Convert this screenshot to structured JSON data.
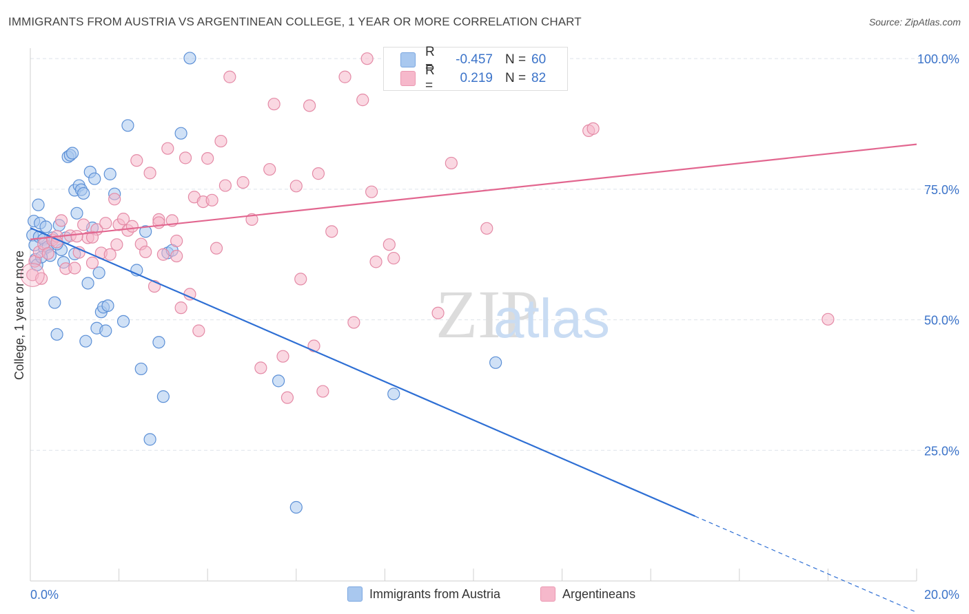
{
  "title": "IMMIGRANTS FROM AUSTRIA VS ARGENTINEAN COLLEGE, 1 YEAR OR MORE CORRELATION CHART",
  "source": "Source: ZipAtlas.com",
  "watermark": {
    "zip": "ZIP",
    "atlas": "atlas"
  },
  "legend": {
    "rows": [
      {
        "r_label": "R =",
        "r_value": "-0.457",
        "n_label": "N =",
        "n_value": "60",
        "color": "#a9c8ef"
      },
      {
        "r_label": "R =",
        "r_value": "0.219",
        "n_label": "N =",
        "n_value": "82",
        "color": "#f6b8cb"
      }
    ]
  },
  "bottom_legend": [
    {
      "label": "Immigrants from Austria",
      "color": "#a9c8ef"
    },
    {
      "label": "Argentineans",
      "color": "#f6b8cb"
    }
  ],
  "chart_data": {
    "type": "scatter",
    "title": "IMMIGRANTS FROM AUSTRIA VS ARGENTINEAN COLLEGE, 1 YEAR OR MORE CORRELATION CHART",
    "xlabel": "",
    "ylabel": "College, 1 year or more",
    "xlim": [
      0,
      20
    ],
    "ylim": [
      0,
      102
    ],
    "x_tick_labels": [
      "0.0%",
      "20.0%"
    ],
    "y_tick_labels": [
      "25.0%",
      "50.0%",
      "75.0%",
      "100.0%"
    ],
    "y_ticks": [
      25,
      50,
      75,
      100
    ],
    "grid": "horizontal dashed",
    "legend_placement": "top-center",
    "colors": {
      "austria_fill": "#a9c8ef",
      "austria_stroke": "#5b8fd6",
      "austria_line": "#2e6fd4",
      "argentina_fill": "#f6b8cb",
      "argentina_stroke": "#e48aa6",
      "argentina_line": "#e2668f",
      "tick_label": "#3b73c9"
    },
    "series": [
      {
        "name": "Immigrants from Austria",
        "points": [
          [
            0.05,
            66.2
          ],
          [
            0.08,
            68.9
          ],
          [
            0.1,
            64.3
          ],
          [
            0.12,
            61.6
          ],
          [
            0.18,
            72.0
          ],
          [
            0.2,
            65.9
          ],
          [
            0.22,
            68.5
          ],
          [
            0.3,
            65.4
          ],
          [
            0.32,
            63.6
          ],
          [
            0.35,
            67.8
          ],
          [
            0.4,
            64.0
          ],
          [
            0.45,
            62.3
          ],
          [
            0.5,
            65.7
          ],
          [
            0.55,
            53.3
          ],
          [
            0.6,
            47.2
          ],
          [
            0.65,
            68.1
          ],
          [
            0.7,
            63.4
          ],
          [
            0.75,
            61.0
          ],
          [
            0.8,
            65.7
          ],
          [
            0.85,
            81.2
          ],
          [
            0.9,
            81.5
          ],
          [
            0.95,
            81.9
          ],
          [
            1.0,
            74.8
          ],
          [
            1.05,
            70.4
          ],
          [
            1.1,
            75.7
          ],
          [
            1.15,
            74.9
          ],
          [
            1.2,
            74.2
          ],
          [
            1.25,
            45.9
          ],
          [
            1.3,
            57.0
          ],
          [
            1.35,
            78.3
          ],
          [
            1.4,
            67.6
          ],
          [
            1.45,
            77.0
          ],
          [
            1.5,
            48.4
          ],
          [
            1.55,
            59.0
          ],
          [
            1.6,
            51.5
          ],
          [
            1.65,
            52.4
          ],
          [
            1.75,
            52.7
          ],
          [
            1.8,
            77.9
          ],
          [
            1.9,
            74.1
          ],
          [
            2.1,
            49.7
          ],
          [
            2.2,
            87.2
          ],
          [
            2.4,
            59.5
          ],
          [
            2.5,
            40.6
          ],
          [
            2.6,
            66.9
          ],
          [
            2.7,
            27.1
          ],
          [
            2.9,
            45.7
          ],
          [
            3.0,
            35.3
          ],
          [
            3.1,
            62.8
          ],
          [
            3.2,
            63.3
          ],
          [
            3.4,
            85.7
          ],
          [
            3.6,
            100.1
          ],
          [
            1.7,
            47.9
          ],
          [
            0.15,
            60.5
          ],
          [
            0.25,
            62.0
          ],
          [
            0.6,
            64.5
          ],
          [
            1.0,
            62.6
          ],
          [
            5.6,
            38.3
          ],
          [
            6.0,
            14.1
          ],
          [
            8.2,
            35.8
          ],
          [
            10.5,
            41.8
          ]
        ]
      },
      {
        "name": "Argentineans",
        "points": [
          [
            0.05,
            58.6
          ],
          [
            0.1,
            61.2
          ],
          [
            0.2,
            63.0
          ],
          [
            0.3,
            64.5
          ],
          [
            0.4,
            62.7
          ],
          [
            0.5,
            65.3
          ],
          [
            0.6,
            66.0
          ],
          [
            0.7,
            69.0
          ],
          [
            0.8,
            59.8
          ],
          [
            0.9,
            66.1
          ],
          [
            1.0,
            59.9
          ],
          [
            1.1,
            62.9
          ],
          [
            1.2,
            68.2
          ],
          [
            1.3,
            65.7
          ],
          [
            1.4,
            60.9
          ],
          [
            1.5,
            67.3
          ],
          [
            1.6,
            62.8
          ],
          [
            1.7,
            68.5
          ],
          [
            1.8,
            62.5
          ],
          [
            1.9,
            73.1
          ],
          [
            2.0,
            68.2
          ],
          [
            2.1,
            69.3
          ],
          [
            2.2,
            67.1
          ],
          [
            2.3,
            67.9
          ],
          [
            2.4,
            80.5
          ],
          [
            2.5,
            64.5
          ],
          [
            2.6,
            63.0
          ],
          [
            2.7,
            78.1
          ],
          [
            2.8,
            56.4
          ],
          [
            2.9,
            69.2
          ],
          [
            3.0,
            62.5
          ],
          [
            3.1,
            82.8
          ],
          [
            3.2,
            69.0
          ],
          [
            3.3,
            65.1
          ],
          [
            3.4,
            52.3
          ],
          [
            3.5,
            81.0
          ],
          [
            3.6,
            54.9
          ],
          [
            3.7,
            73.5
          ],
          [
            3.8,
            47.9
          ],
          [
            3.9,
            72.6
          ],
          [
            4.0,
            80.9
          ],
          [
            4.1,
            72.9
          ],
          [
            4.2,
            63.7
          ],
          [
            4.3,
            84.2
          ],
          [
            4.4,
            75.7
          ],
          [
            4.5,
            96.5
          ],
          [
            4.8,
            76.3
          ],
          [
            5.0,
            69.2
          ],
          [
            5.2,
            40.8
          ],
          [
            5.4,
            78.8
          ],
          [
            5.5,
            91.3
          ],
          [
            5.7,
            43.0
          ],
          [
            5.8,
            35.1
          ],
          [
            6.0,
            75.6
          ],
          [
            6.1,
            57.8
          ],
          [
            6.3,
            91.0
          ],
          [
            6.4,
            45.0
          ],
          [
            6.5,
            78.0
          ],
          [
            6.6,
            36.3
          ],
          [
            6.8,
            66.9
          ],
          [
            7.1,
            96.5
          ],
          [
            7.3,
            49.5
          ],
          [
            7.5,
            92.1
          ],
          [
            7.6,
            100.0
          ],
          [
            7.7,
            74.5
          ],
          [
            7.8,
            61.1
          ],
          [
            8.1,
            64.4
          ],
          [
            8.2,
            61.8
          ],
          [
            8.5,
            97.2
          ],
          [
            9.2,
            51.3
          ],
          [
            9.5,
            80.0
          ],
          [
            10.3,
            67.5
          ],
          [
            12.6,
            86.2
          ],
          [
            12.7,
            86.6
          ],
          [
            18.0,
            50.1
          ],
          [
            1.05,
            66.0
          ],
          [
            1.95,
            64.4
          ],
          [
            2.9,
            68.6
          ],
          [
            3.3,
            62.2
          ],
          [
            0.25,
            57.9
          ],
          [
            0.6,
            64.9
          ],
          [
            1.4,
            65.8
          ]
        ]
      }
    ],
    "trendlines": [
      {
        "series": "Immigrants from Austria",
        "x": [
          0,
          15.0
        ],
        "y": [
          67.6,
          12.4
        ],
        "dashed_extension_x": [
          15.0,
          20.0
        ]
      },
      {
        "series": "Argentineans",
        "x": [
          0,
          20.0
        ],
        "y": [
          65.4,
          83.6
        ]
      }
    ]
  }
}
